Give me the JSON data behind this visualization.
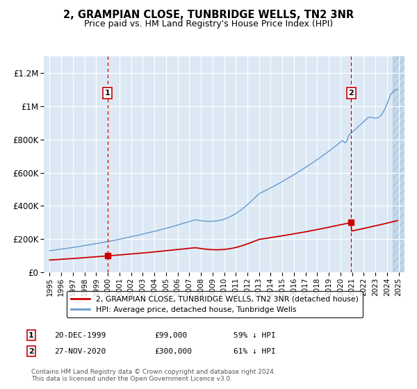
{
  "title": "2, GRAMPIAN CLOSE, TUNBRIDGE WELLS, TN2 3NR",
  "subtitle": "Price paid vs. HM Land Registry's House Price Index (HPI)",
  "legend_line1": "2, GRAMPIAN CLOSE, TUNBRIDGE WELLS, TN2 3NR (detached house)",
  "legend_line2": "HPI: Average price, detached house, Tunbridge Wells",
  "annotation1_label": "1",
  "annotation1_date": "20-DEC-1999",
  "annotation1_price": "£99,000",
  "annotation1_hpi": "59% ↓ HPI",
  "annotation1_year": 1999.97,
  "annotation1_value": 99000,
  "annotation2_label": "2",
  "annotation2_date": "27-NOV-2020",
  "annotation2_price": "£300,000",
  "annotation2_hpi": "61% ↓ HPI",
  "annotation2_year": 2020.92,
  "annotation2_value": 300000,
  "footer": "Contains HM Land Registry data © Crown copyright and database right 2024.\nThis data is licensed under the Open Government Licence v3.0.",
  "background_color": "#ffffff",
  "plot_bg_color": "#dce9f5",
  "red_line_color": "#cc0000",
  "blue_line_color": "#6699cc",
  "dashed_line_color": "#cc0000",
  "ylim": [
    0,
    1300000
  ],
  "xlim_start": 1994.5,
  "xlim_end": 2025.5,
  "hatch_start": 2024.5
}
